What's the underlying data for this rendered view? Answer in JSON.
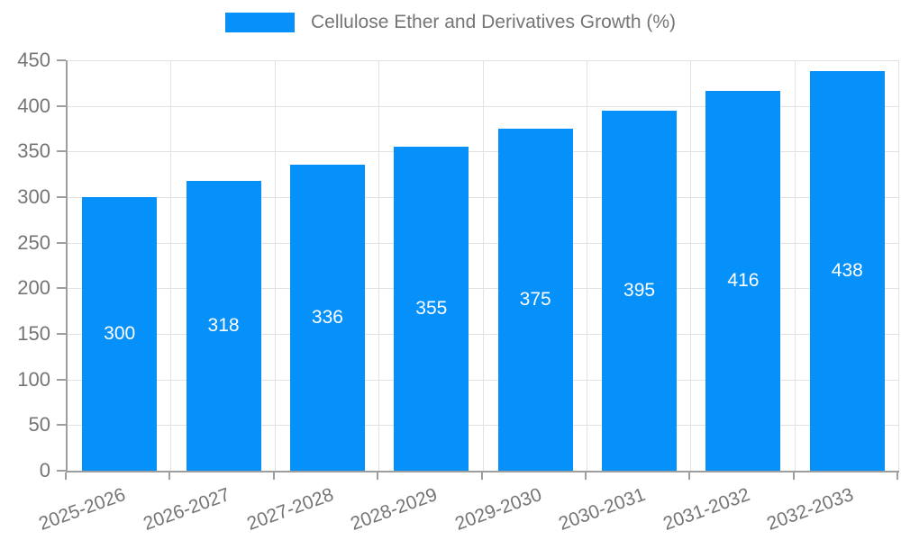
{
  "legend": {
    "label": "Cellulose Ether and Derivatives Growth (%)"
  },
  "chart_data": {
    "type": "bar",
    "title": "Cellulose Ether and Derivatives Growth (%)",
    "categories": [
      "2025-2026",
      "2026-2027",
      "2027-2028",
      "2028-2029",
      "2029-2030",
      "2030-2031",
      "2031-2032",
      "2032-2033"
    ],
    "values": [
      300,
      318,
      336,
      355,
      375,
      395,
      416,
      438
    ],
    "xlabel": "",
    "ylabel": "",
    "ylim": [
      0,
      450
    ],
    "ytick_step": 50,
    "ytick_labels": [
      "0",
      "50",
      "100",
      "150",
      "200",
      "250",
      "300",
      "350",
      "400",
      "450"
    ],
    "grid": true,
    "legend_position": "top",
    "bar_color": "#0690fa",
    "bar_label_color": "#ffffff",
    "axis_color": "#9e9e9e",
    "grid_color": "#e2e2e2",
    "text_color": "#757575",
    "background_color": "#ffffff"
  }
}
